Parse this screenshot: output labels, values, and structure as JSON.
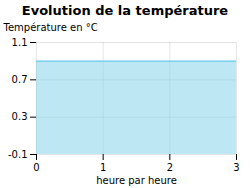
{
  "chart_data": {
    "type": "area",
    "title": "Evolution de la température",
    "xlabel": "heure par heure",
    "ylabel": "Température en °C",
    "x": [
      0,
      3
    ],
    "values": [
      0.9,
      0.9
    ],
    "color": "#7ecfea",
    "xlim": [
      0,
      3
    ],
    "ylim": [
      -0.1,
      1.1
    ],
    "xticks": [
      0,
      1,
      2,
      3
    ],
    "yticks": [
      -0.1,
      0.3,
      0.7,
      1.1
    ],
    "grid": true
  }
}
